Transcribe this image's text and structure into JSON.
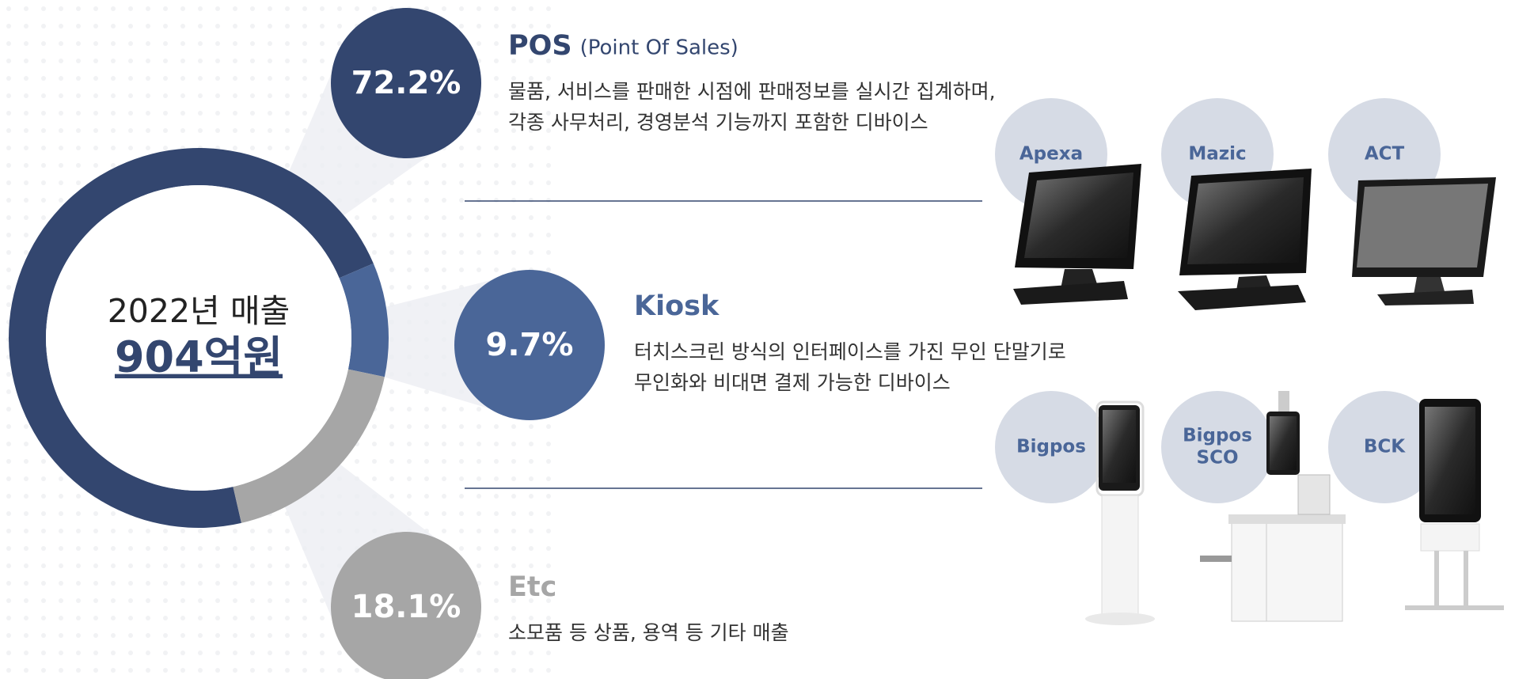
{
  "chart_data": {
    "type": "donut",
    "center_label": "2022년 매출",
    "center_value": "904억원",
    "categories": [
      "POS",
      "Kiosk",
      "Etc"
    ],
    "values": [
      72.2,
      9.7,
      18.1
    ],
    "value_labels": [
      "72.2%",
      "9.7%",
      "18.1%"
    ],
    "colors": [
      "#33466f",
      "#4a6698",
      "#a6a6a6"
    ],
    "details": [
      {
        "subtitle": "(Point Of Sales)",
        "lines": [
          "물품, 서비스를 판매한 시점에 판매정보를 실시간 집계하며,",
          "각종 사무처리, 경영분석 기능까지 포함한 디바이스"
        ]
      },
      {
        "lines": [
          "터치스크린 방식의 인터페이스를 가진 무인 단말기로",
          "무인화와 비대면 결제 가능한 디바이스"
        ]
      },
      {
        "lines": [
          "소모품 등 상품, 용역 등 기타 매출"
        ]
      }
    ],
    "products": [
      [
        [
          "Apexa"
        ],
        [
          "Mazic"
        ],
        [
          "ACT"
        ]
      ],
      [
        [
          "Bigpos"
        ],
        [
          "Bigpos",
          "SCO"
        ],
        [
          "BCK"
        ]
      ]
    ]
  }
}
